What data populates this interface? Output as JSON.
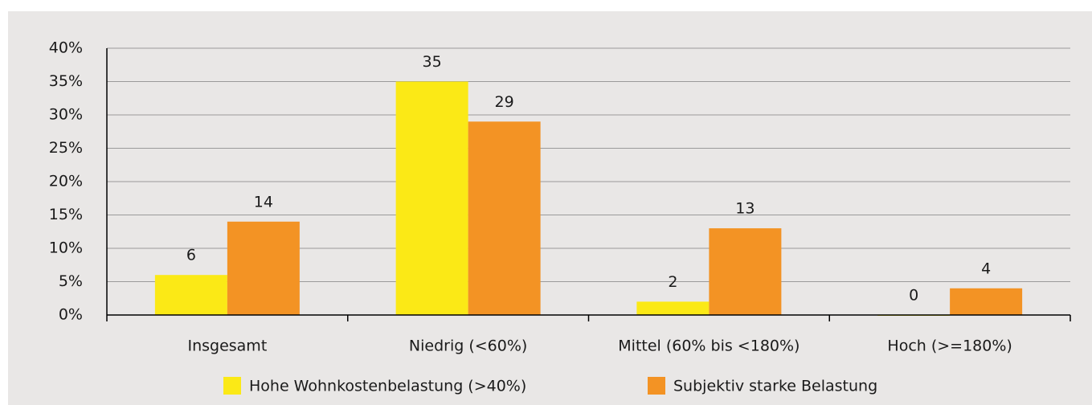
{
  "chart_data": {
    "type": "bar",
    "categories": [
      "Insgesamt",
      "Niedrig (<60%)",
      "Mittel (60% bis <180%)",
      "Hoch (>=180%)"
    ],
    "series": [
      {
        "name": "Hohe Wohnkostenbelastung (>40%)",
        "color": "#fbe916",
        "values": [
          6,
          35,
          2,
          0
        ]
      },
      {
        "name": "Subjektiv starke Belastung",
        "color": "#f39324",
        "values": [
          14,
          29,
          13,
          4
        ]
      }
    ],
    "ylim": [
      0,
      40
    ],
    "yticks": [
      {
        "value": 0,
        "label": "0%"
      },
      {
        "value": 5,
        "label": "5%"
      },
      {
        "value": 10,
        "label": "10%"
      },
      {
        "value": 15,
        "label": "15%"
      },
      {
        "value": 20,
        "label": "20%"
      },
      {
        "value": 25,
        "label": "25%"
      },
      {
        "value": 30,
        "label": "30%"
      },
      {
        "value": 35,
        "label": "35%"
      },
      {
        "value": 40,
        "label": "40%"
      }
    ],
    "grid": true,
    "legend": "bottom"
  }
}
